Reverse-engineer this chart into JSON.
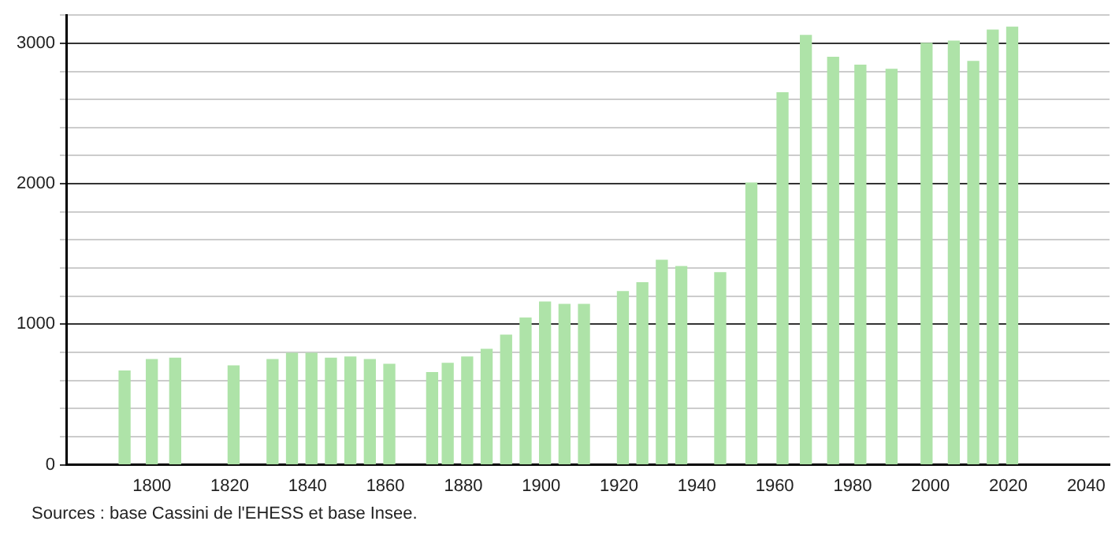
{
  "chart_data": {
    "type": "bar",
    "x": [
      1793,
      1800,
      1806,
      1821,
      1831,
      1836,
      1841,
      1846,
      1851,
      1856,
      1861,
      1872,
      1876,
      1881,
      1886,
      1891,
      1896,
      1901,
      1906,
      1911,
      1921,
      1926,
      1931,
      1936,
      1946,
      1954,
      1962,
      1968,
      1975,
      1982,
      1990,
      1999,
      2006,
      2011,
      2016,
      2021
    ],
    "values": [
      667,
      748,
      759,
      704,
      748,
      793,
      793,
      759,
      767,
      748,
      715,
      656,
      722,
      767,
      822,
      922,
      1044,
      1158,
      1141,
      1141,
      1233,
      1296,
      1456,
      1411,
      1367,
      2005,
      2647,
      3056,
      2900,
      2844,
      2814,
      3000,
      3015,
      2870,
      3093,
      3115
    ],
    "color": "#aee3a8",
    "xlim": [
      1778,
      2046
    ],
    "xticks": [
      1800,
      1820,
      1840,
      1860,
      1880,
      1900,
      1920,
      1940,
      1960,
      1980,
      2000,
      2020,
      2040
    ],
    "ylim": [
      0,
      3200
    ],
    "yticks": [
      0,
      {
        "value": 200,
        "label": null
      },
      {
        "value": 400,
        "label": null
      },
      {
        "value": 600,
        "label": null
      },
      {
        "value": 800,
        "label": null
      },
      1000,
      {
        "value": 1200,
        "label": null
      },
      {
        "value": 1400,
        "label": null
      },
      {
        "value": 1600,
        "label": null
      },
      {
        "value": 1800,
        "label": null
      },
      2000,
      {
        "value": 2200,
        "label": null
      },
      {
        "value": 2400,
        "label": null
      },
      {
        "value": 2600,
        "label": null
      },
      {
        "value": 2800,
        "label": null
      },
      3000,
      {
        "value": 3200,
        "label": null
      }
    ],
    "grid": "y",
    "annotations": [
      "Sources : base Cassini de l'EHESS et base Insee."
    ]
  }
}
